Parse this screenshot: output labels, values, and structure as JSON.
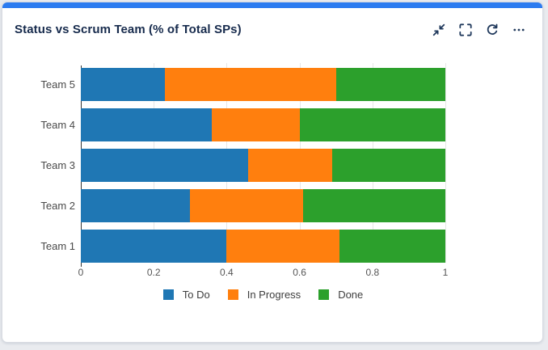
{
  "colors": {
    "accent": "#2b7bf0",
    "title_text": "#172b4d",
    "icon": "#20395c",
    "axis_line": "#333333",
    "grid_line": "#e7e7e7",
    "tick_text": "#555555"
  },
  "header": {
    "title": "Status vs Scrum Team (% of Total SPs)",
    "actions": [
      {
        "name": "collapse",
        "icon": "collapse-arrows-icon"
      },
      {
        "name": "fullscreen",
        "icon": "fullscreen-brackets-icon"
      },
      {
        "name": "refresh",
        "icon": "refresh-icon"
      },
      {
        "name": "more",
        "icon": "ellipsis-icon"
      }
    ]
  },
  "chart_data": {
    "type": "bar",
    "orientation": "horizontal",
    "stacked": true,
    "title": "Status vs Scrum Team (% of Total SPs)",
    "categories": [
      "Team 5",
      "Team 4",
      "Team 3",
      "Team 2",
      "Team 1"
    ],
    "series": [
      {
        "name": "To Do",
        "color": "#1f77b4",
        "values": [
          0.23,
          0.36,
          0.46,
          0.3,
          0.4
        ]
      },
      {
        "name": "In Progress",
        "color": "#ff7f0e",
        "values": [
          0.47,
          0.24,
          0.23,
          0.31,
          0.31
        ]
      },
      {
        "name": "Done",
        "color": "#2ca02c",
        "values": [
          0.3,
          0.4,
          0.31,
          0.39,
          0.29
        ]
      }
    ],
    "xlim": [
      0,
      1
    ],
    "xtick_labels": [
      "0",
      "0.2",
      "0.4",
      "0.6",
      "0.8",
      "1"
    ],
    "xtick_values": [
      0,
      0.2,
      0.4,
      0.6,
      0.8,
      1
    ],
    "grid": true,
    "legend_position": "bottom"
  }
}
